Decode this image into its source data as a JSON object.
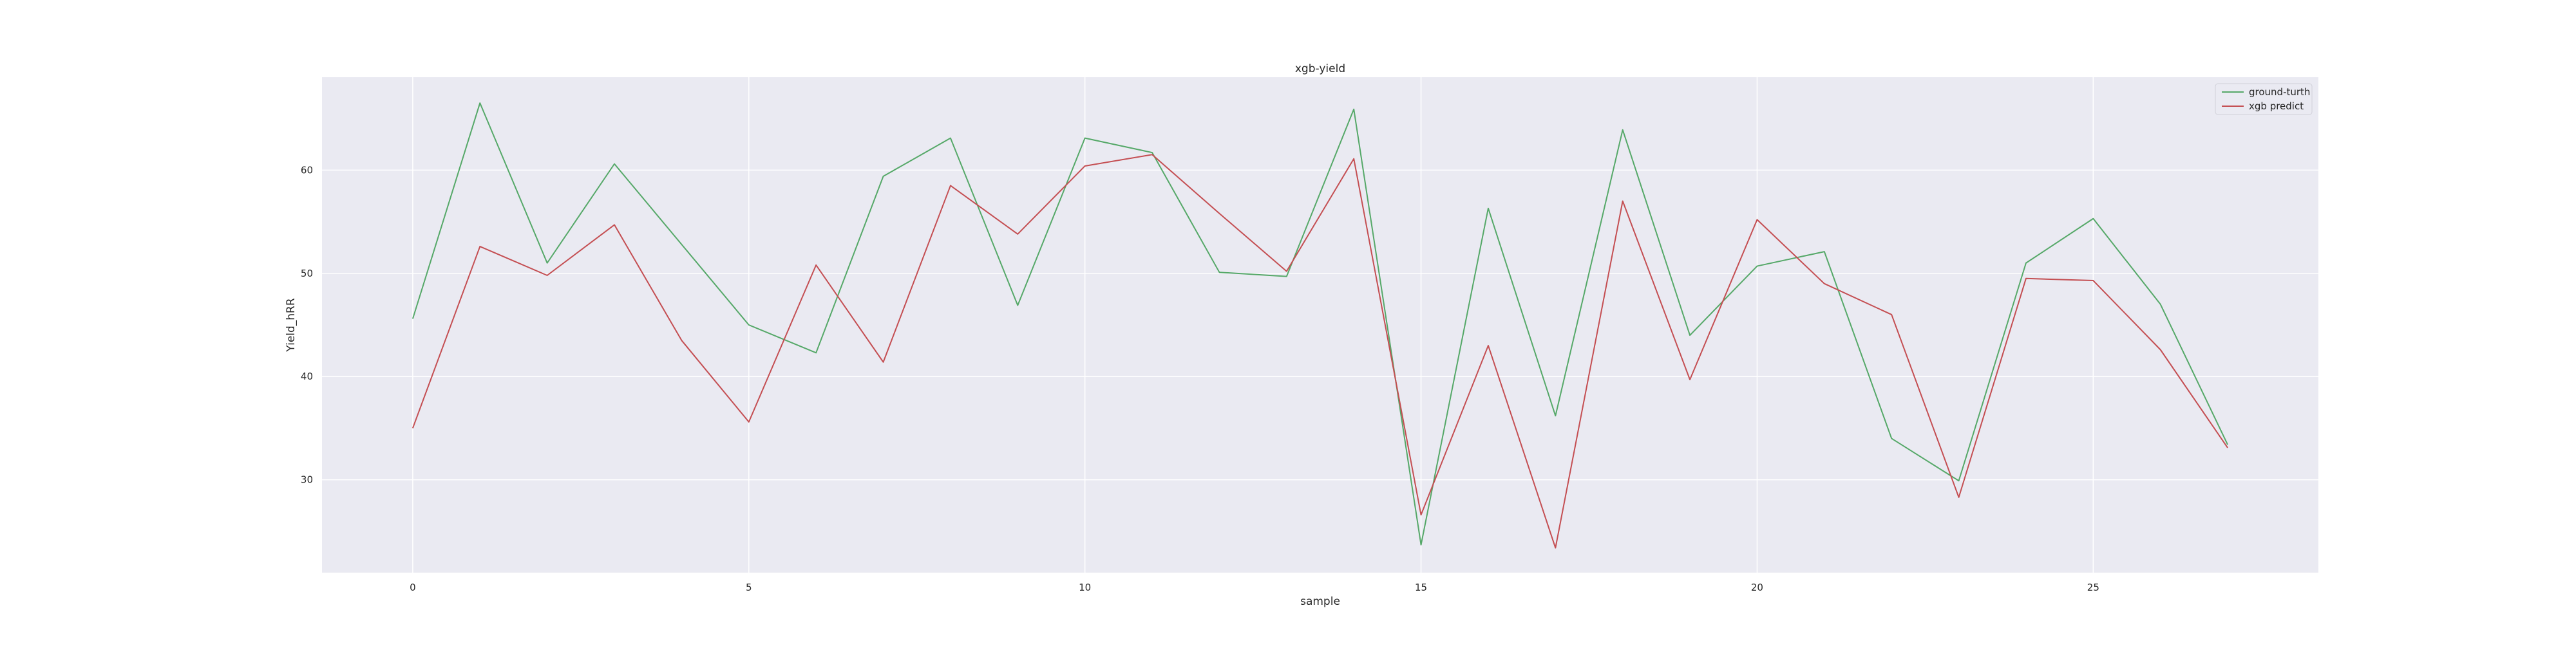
{
  "chart_data": {
    "type": "line",
    "title": "xgb-yield",
    "xlabel": "sample",
    "ylabel": "Yield_hRR",
    "x": [
      0,
      1,
      2,
      3,
      4,
      5,
      6,
      7,
      8,
      9,
      10,
      11,
      12,
      13,
      14,
      15,
      16,
      17,
      18,
      19,
      20,
      21,
      22,
      23,
      24,
      25,
      26,
      27
    ],
    "xlim": [
      -1.35,
      28.35
    ],
    "ylim": [
      21,
      69
    ],
    "xticks": [
      0,
      5,
      10,
      15,
      20,
      25
    ],
    "yticks": [
      30,
      40,
      50,
      60
    ],
    "grid": true,
    "legend_position": "top-right",
    "series": [
      {
        "name": "ground-turth",
        "color": "#55a868",
        "values": [
          45.6,
          66.5,
          51.0,
          60.6,
          52.8,
          45.0,
          42.3,
          59.4,
          63.1,
          46.9,
          63.1,
          61.7,
          50.1,
          49.7,
          65.9,
          23.7,
          56.3,
          36.2,
          63.9,
          44.0,
          50.7,
          52.1,
          34.0,
          29.9,
          51.0,
          55.3,
          47.0,
          33.4
        ]
      },
      {
        "name": "xgb predict",
        "color": "#c44e52",
        "values": [
          35.0,
          52.6,
          49.8,
          54.7,
          43.5,
          35.6,
          50.8,
          41.4,
          58.5,
          53.8,
          60.4,
          61.5,
          55.8,
          50.2,
          61.1,
          26.6,
          43.0,
          23.4,
          57.0,
          39.7,
          55.2,
          49.0,
          46.0,
          28.3,
          49.5,
          49.3,
          42.6,
          33.1
        ]
      }
    ]
  }
}
